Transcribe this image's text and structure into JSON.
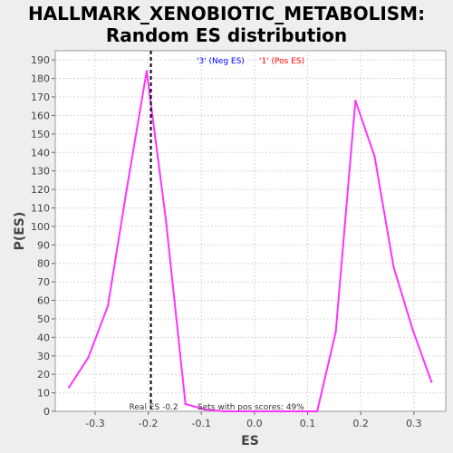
{
  "chart_data": {
    "type": "line",
    "title_lines": [
      "HALLMARK_XENOBIOTIC_METABOLISM:",
      "Random ES distribution"
    ],
    "xlabel": "ES",
    "ylabel": "P(ES)",
    "xlim": [
      -0.375,
      0.36
    ],
    "ylim": [
      0,
      195
    ],
    "xticks": [
      -0.3,
      -0.2,
      -0.1,
      0.0,
      0.1,
      0.2,
      0.3
    ],
    "xtick_labels": [
      "-0.3",
      "-0.2",
      "-0.1",
      "0.0",
      "0.1",
      "0.2",
      "0.3"
    ],
    "yticks": [
      0,
      10,
      20,
      30,
      40,
      50,
      60,
      70,
      80,
      90,
      100,
      110,
      120,
      130,
      140,
      150,
      160,
      170,
      180,
      190
    ],
    "ytick_labels": [
      "0",
      "10",
      "20",
      "30",
      "40",
      "50",
      "60",
      "70",
      "80",
      "90",
      "100",
      "110",
      "120",
      "130",
      "140",
      "150",
      "160",
      "170",
      "180",
      "190"
    ],
    "grid": true,
    "series": [
      {
        "color": "#ff33ff",
        "x": [
          -0.349,
          -0.313,
          -0.276,
          -0.24,
          -0.203,
          -0.167,
          -0.13,
          -0.094,
          -0.057,
          -0.021,
          0.016,
          0.052,
          0.089,
          0.118,
          0.153,
          0.19,
          0.226,
          0.262,
          0.298,
          0.333
        ],
        "y": [
          13,
          29,
          57,
          121,
          184,
          104,
          4,
          1,
          0,
          0,
          0,
          0,
          0,
          0,
          43,
          168,
          138,
          78,
          44,
          16
        ]
      }
    ],
    "real_es_line": {
      "x": -0.195,
      "color": "#000000",
      "label": "Real ES -0.2"
    },
    "legend_items": [
      {
        "text": "'3' (Neg ES)",
        "color": "#0000ff"
      },
      {
        "text": "'1' (Pos ES)",
        "color": "#ff0000"
      }
    ],
    "annotation": "Sets with pos scores: 49%"
  }
}
